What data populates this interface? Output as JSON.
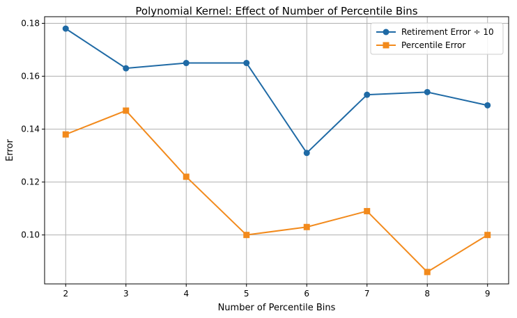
{
  "chart_data": {
    "type": "line",
    "title": "Polynomial Kernel: Effect of Number of Percentile Bins",
    "xlabel": "Number of Percentile Bins",
    "ylabel": "Error",
    "x": [
      2,
      3,
      4,
      5,
      6,
      7,
      8,
      9
    ],
    "x_ticks": [
      "2",
      "3",
      "4",
      "5",
      "6",
      "7",
      "8",
      "9"
    ],
    "y_ticks": [
      "0.10",
      "0.12",
      "0.14",
      "0.16",
      "0.18"
    ],
    "xlim": [
      1.65,
      9.35
    ],
    "ylim": [
      0.0815,
      0.1825
    ],
    "grid": true,
    "legend_position": "top-right",
    "series": [
      {
        "name": "Retirement Error ÷ 10",
        "color": "#1f6aa5",
        "marker": "circle",
        "values": [
          0.178,
          0.163,
          0.165,
          0.165,
          0.131,
          0.153,
          0.154,
          0.149
        ]
      },
      {
        "name": "Percentile Error",
        "color": "#f28a1c",
        "marker": "square",
        "values": [
          0.138,
          0.147,
          0.122,
          0.1,
          0.103,
          0.109,
          0.086,
          0.1
        ]
      }
    ]
  }
}
